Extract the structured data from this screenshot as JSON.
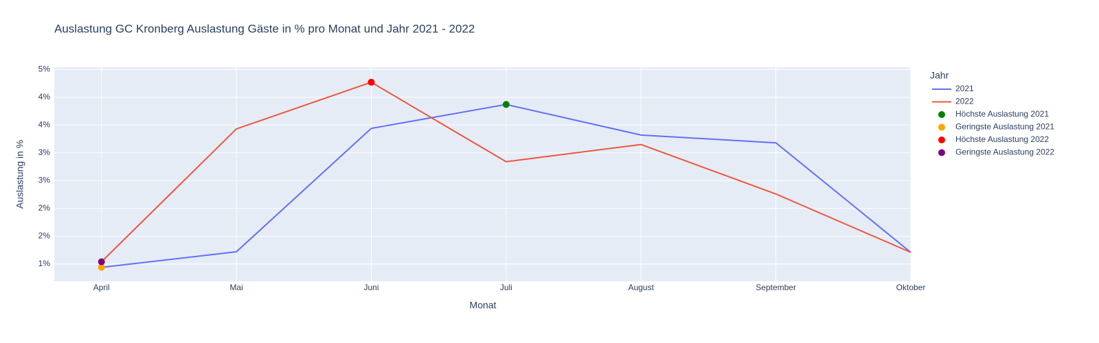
{
  "chart_data": {
    "type": "line",
    "title": "Auslastung GC Kronberg Auslastung Gäste in % pro Monat und Jahr 2021 - 2022",
    "x_label": "Monat",
    "y_label": "Auslastung in %",
    "categories": [
      "April",
      "Mai",
      "Juni",
      "Juli",
      "August",
      "September",
      "Oktober"
    ],
    "legend_title": "Jahr",
    "series": [
      {
        "name": "2021",
        "color": "#636efa",
        "mode": "lines",
        "x": [
          "April",
          "Mai",
          "Juni",
          "Juli",
          "August",
          "September",
          "Oktober"
        ],
        "values": [
          0.94,
          1.22,
          3.44,
          3.87,
          3.32,
          3.18,
          1.21
        ]
      },
      {
        "name": "2022",
        "color": "#ef553b",
        "mode": "lines",
        "x": [
          "April",
          "Mai",
          "Juni",
          "Juli",
          "August",
          "September",
          "Oktober"
        ],
        "values": [
          1.04,
          3.43,
          4.27,
          2.84,
          3.15,
          2.26,
          1.21
        ]
      },
      {
        "name": "Höchste Auslastung 2021",
        "color": "green",
        "mode": "markers",
        "x": [
          "Juli"
        ],
        "values": [
          3.87
        ]
      },
      {
        "name": "Geringste Auslastung 2021",
        "color": "orange",
        "mode": "markers",
        "x": [
          "April"
        ],
        "values": [
          0.94
        ]
      },
      {
        "name": "Höchste Auslastung 2022",
        "color": "red",
        "mode": "markers",
        "x": [
          "Juni"
        ],
        "values": [
          4.27
        ]
      },
      {
        "name": "Geringste Auslastung 2022",
        "color": "purple",
        "mode": "markers",
        "x": [
          "April"
        ],
        "values": [
          1.04
        ]
      }
    ],
    "ylim": [
      0.69,
      4.54
    ],
    "yticks": [
      {
        "value": 1,
        "label": "1%"
      },
      {
        "value": 1.5,
        "label": "2%"
      },
      {
        "value": 2,
        "label": "2%"
      },
      {
        "value": 2.5,
        "label": "3%"
      },
      {
        "value": 3,
        "label": "3%"
      },
      {
        "value": 3.5,
        "label": "4%"
      },
      {
        "value": 4,
        "label": "4%"
      },
      {
        "value": 4.5,
        "label": "5%"
      }
    ],
    "grid": true,
    "plot_background": "#e5ecf6",
    "legend_position": "right"
  }
}
